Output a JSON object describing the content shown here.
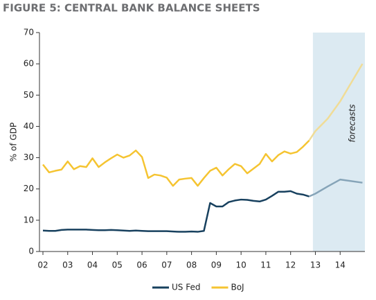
{
  "chart_data": {
    "type": "line",
    "title": "FIGURE 5: CENTRAL BANK BALANCE SHEETS",
    "ylabel": "% of GDP",
    "annotation": "forecasts",
    "forecast_region": [
      2012.9,
      2015
    ],
    "forecast_fill": "#dceaf2",
    "x": [
      2002,
      2002.25,
      2002.5,
      2002.75,
      2003,
      2003.25,
      2003.5,
      2003.75,
      2004,
      2004.25,
      2004.5,
      2004.75,
      2005,
      2005.25,
      2005.5,
      2005.75,
      2006,
      2006.25,
      2006.5,
      2006.75,
      2007,
      2007.25,
      2007.5,
      2007.75,
      2008,
      2008.25,
      2008.5,
      2008.75,
      2009,
      2009.25,
      2009.5,
      2009.75,
      2010,
      2010.25,
      2010.5,
      2010.75,
      2011,
      2011.25,
      2011.5,
      2011.75,
      2012,
      2012.25,
      2012.5,
      2012.75,
      2013,
      2013.5,
      2014,
      2014.9
    ],
    "series": [
      {
        "name": "US Fed",
        "color": "#17405e",
        "forecast_color": "#86a4b8",
        "values": [
          6.7,
          6.6,
          6.6,
          6.9,
          7.0,
          7.0,
          7.0,
          7.0,
          6.9,
          6.8,
          6.8,
          6.9,
          6.8,
          6.7,
          6.6,
          6.7,
          6.6,
          6.5,
          6.5,
          6.5,
          6.5,
          6.4,
          6.3,
          6.3,
          6.4,
          6.3,
          6.6,
          15.5,
          14.4,
          14.4,
          15.8,
          16.3,
          16.6,
          16.5,
          16.2,
          16.0,
          16.6,
          17.8,
          19.1,
          19.1,
          19.3,
          18.5,
          18.2,
          17.6,
          18.5,
          20.8,
          23.0,
          22.0
        ]
      },
      {
        "name": "BoJ",
        "color": "#f5c431",
        "forecast_color": "#f0dc96",
        "values": [
          27.8,
          25.3,
          25.8,
          26.2,
          28.8,
          26.3,
          27.3,
          27.0,
          29.8,
          27.0,
          28.5,
          29.8,
          31.0,
          30.0,
          30.7,
          32.3,
          30.2,
          23.5,
          24.6,
          24.3,
          23.6,
          21.0,
          23.0,
          23.3,
          23.5,
          21.0,
          23.5,
          25.8,
          26.8,
          24.3,
          26.3,
          28.0,
          27.3,
          25.0,
          26.5,
          28.0,
          31.2,
          28.8,
          30.8,
          32.0,
          31.3,
          31.8,
          33.5,
          35.5,
          38.5,
          42.5,
          48.0,
          60.0
        ]
      }
    ],
    "xlim": [
      2002,
      2015
    ],
    "xticks": [
      {
        "value": 2002,
        "label": "02"
      },
      {
        "value": 2003,
        "label": "03"
      },
      {
        "value": 2004,
        "label": "04"
      },
      {
        "value": 2005,
        "label": "05"
      },
      {
        "value": 2006,
        "label": "06"
      },
      {
        "value": 2007,
        "label": "07"
      },
      {
        "value": 2008,
        "label": "08"
      },
      {
        "value": 2009,
        "label": "09"
      },
      {
        "value": 2010,
        "label": "10"
      },
      {
        "value": 2011,
        "label": "11"
      },
      {
        "value": 2012,
        "label": "12"
      },
      {
        "value": 2013,
        "label": "13"
      },
      {
        "value": 2014,
        "label": "14"
      }
    ],
    "ylim": [
      0,
      70
    ],
    "yticks": [
      0,
      10,
      20,
      30,
      40,
      50,
      60,
      70
    ],
    "legend": "bottom"
  }
}
